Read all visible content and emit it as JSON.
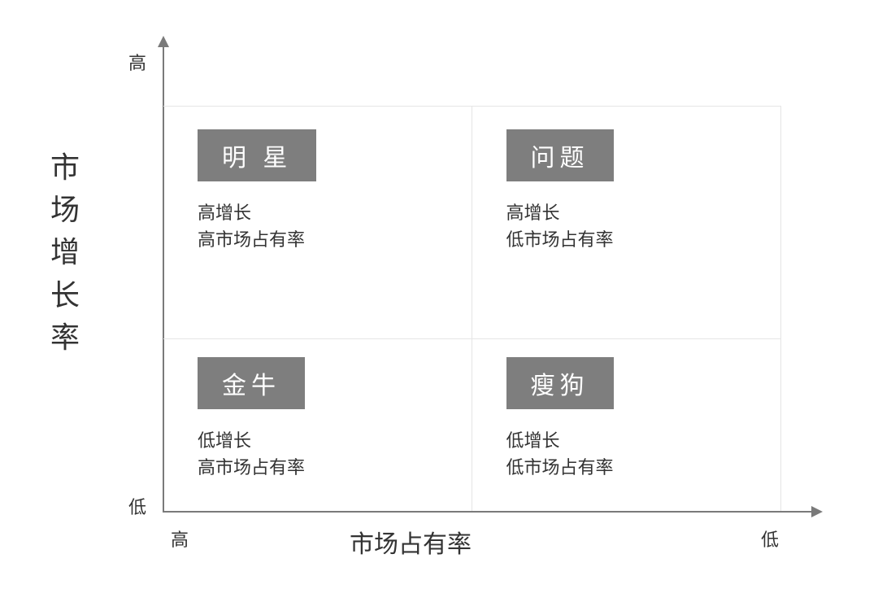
{
  "diagram": {
    "type": "2x2-matrix",
    "background_color": "#ffffff",
    "axis_color": "#7a7a7a",
    "grid_color": "#e5e5e5",
    "badge_bg": "#7e7e7e",
    "badge_fg": "#ffffff",
    "text_color": "#333333",
    "badge_fontsize": 30,
    "desc_fontsize": 22,
    "axis_title_fontsize_y": 36,
    "axis_title_fontsize_x": 30,
    "axis_endlabel_fontsize": 22,
    "y_axis": {
      "title": "市场增长率",
      "high_label": "高",
      "low_label": "低"
    },
    "x_axis": {
      "title": "市场占有率",
      "high_label": "高",
      "low_label": "低"
    },
    "quadrants": {
      "top_left": {
        "title": "明 星",
        "line1": "高增长",
        "line2": "高市场占有率"
      },
      "top_right": {
        "title": "问题",
        "line1": "高增长",
        "line2": "低市场占有率"
      },
      "bottom_left": {
        "title": "金牛",
        "line1": "低增长",
        "line2": "高市场占有率"
      },
      "bottom_right": {
        "title": "瘦狗",
        "line1": "低增长",
        "line2": "低市场占有率"
      }
    }
  }
}
